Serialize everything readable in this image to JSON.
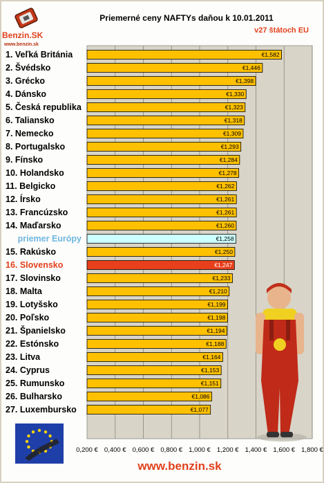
{
  "header": {
    "logo_text": "Benzin.SK",
    "logo_url_text": "www.benzin.sk",
    "title": "Priemerné ceny NAFTYs daňou k 10.01.2011",
    "subtitle": "v27 štátoch EU"
  },
  "footer": {
    "site": "www.benzin.sk"
  },
  "colors": {
    "bar": "#ffc000",
    "highlight_bar": "#e8401c",
    "average_bar": "#ccffff",
    "highlight_label": "#e0401c",
    "average_label": "#6fb6e0",
    "plot_bg": "#d8d4c8"
  },
  "icons": [
    "benzin-logo-icon",
    "eu-flag-nozzle-icon",
    "mechanic-mascot-icon"
  ],
  "chart_data": {
    "type": "bar",
    "orientation": "horizontal",
    "categories": [
      "1. Veľká Británia",
      "2. Švédsko",
      "3. Grécko",
      "4. Dánsko",
      "5. Česká republika",
      "6. Taliansko",
      "7. Nemecko",
      "8. Portugalsko",
      "9. Fínsko",
      "10. Holandsko",
      "11. Belgicko",
      "12. Írsko",
      "13. Francúzsko",
      "14. Maďarsko",
      "priemer Európy",
      "15. Rakúsko",
      "16. Slovensko",
      "17. Slovinsko",
      "18. Malta",
      "19. Lotyšsko",
      "20. Poľsko",
      "21. Španielsko",
      "22. Estónsko",
      "23. Litva",
      "24. Cyprus",
      "25. Rumunsko",
      "26. Bulharsko",
      "27. Luxembursko"
    ],
    "values": [
      1.582,
      1.446,
      1.398,
      1.33,
      1.323,
      1.318,
      1.309,
      1.293,
      1.284,
      1.278,
      1.262,
      1.261,
      1.261,
      1.26,
      1.258,
      1.25,
      1.247,
      1.233,
      1.21,
      1.199,
      1.198,
      1.194,
      1.188,
      1.164,
      1.153,
      1.151,
      1.086,
      1.077
    ],
    "value_labels": [
      "€1,582",
      "€1,446",
      "€1,398",
      "€1,330",
      "€1,323",
      "€1,318",
      "€1,309",
      "€1,293",
      "€1,284",
      "€1,278",
      "€1,262",
      "€1,261",
      "€1,261",
      "€1,260",
      "€1,258",
      "€1,250",
      "€1,247",
      "€1,233",
      "€1,210",
      "€1,199",
      "€1,198",
      "€1,194",
      "€1,188",
      "€1,164",
      "€1,153",
      "€1,151",
      "€1,086",
      "€1,077"
    ],
    "highlight_category": "16. Slovensko",
    "average_category": "priemer Európy",
    "x_ticks": [
      "0,200 €",
      "0,400 €",
      "0,600 €",
      "0,800 €",
      "1,000 €",
      "1,200 €",
      "1,400 €",
      "1,600 €",
      "1,800 €"
    ],
    "x_tick_values": [
      0.2,
      0.4,
      0.6,
      0.8,
      1.0,
      1.2,
      1.4,
      1.6,
      1.8
    ],
    "xlim": [
      0.2,
      1.8
    ],
    "grid": true,
    "title": "Priemerné ceny NAFTYs daňou k 10.01.2011",
    "xlabel": "",
    "ylabel": ""
  }
}
